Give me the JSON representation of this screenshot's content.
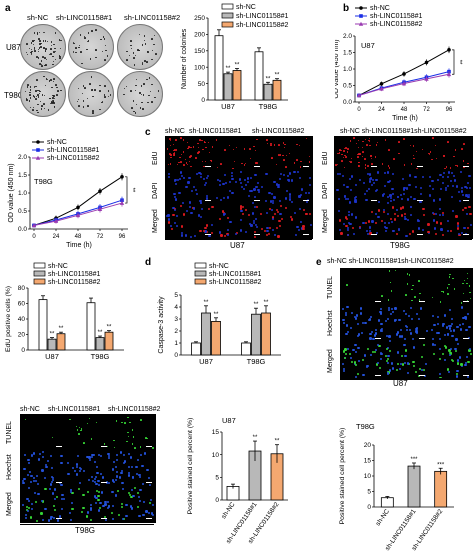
{
  "panels": {
    "a": "a",
    "b": "b",
    "c": "c",
    "d": "d",
    "e": "e"
  },
  "groups": [
    "sh-NC",
    "sh-LINC01158#1",
    "sh-LINC01158#2"
  ],
  "colors": {
    "nc": "#ffffff",
    "kd1": "#b8b8b8",
    "kd2": "#f4a870",
    "line_nc": "#000000",
    "line_kd1": "#1a2ee6",
    "line_kd2": "#9a3ab0",
    "edu": "#d8181e",
    "dapi": "#1c33c8",
    "tunel": "#35d435",
    "hoechst": "#2350d8"
  },
  "colony_images": {
    "labels": [
      "sh-NC",
      "sh-LINC01158#1",
      "sh-LINC01158#2"
    ],
    "rows": [
      "U87",
      "T98G"
    ]
  },
  "micro": {
    "edu": {
      "header_u87": [
        "sh-NC",
        "sh-LINC01158#1",
        "sh-LINC01158#2"
      ],
      "header_t98g": "sh-NC sh-LINC01158#1sh-LINC01158#2",
      "rows": [
        "EdU",
        "DAPI",
        "Merged"
      ],
      "u87": "U87",
      "t98g": "T98G"
    },
    "tunel_u87": {
      "header": "sh-NC sh-LINC01158#1sh-LINC01158#2",
      "rows": [
        "TUNEL",
        "Hoechst",
        "Merged"
      ],
      "cell": "U87"
    },
    "tunel_t98g": {
      "header": [
        "sh-NC",
        "sh-LINC01158#1",
        "sh-LINC01158#2"
      ],
      "rows": [
        "TUNEL",
        "Hoechst",
        "Merged"
      ],
      "cell": "T98G"
    }
  },
  "chart_data": [
    {
      "id": "colonies",
      "type": "bar",
      "categories": [
        "U87",
        "T98G"
      ],
      "series": [
        {
          "name": "sh-NC",
          "values": [
            196,
            147
          ],
          "err": [
            18,
            12
          ]
        },
        {
          "name": "sh-LINC01158#1",
          "values": [
            80,
            48
          ],
          "err": [
            5,
            6
          ]
        },
        {
          "name": "sh-LINC01158#2",
          "values": [
            90,
            60
          ],
          "err": [
            6,
            5
          ]
        }
      ],
      "ylabel": "Number of colonies",
      "ylim": [
        0,
        250
      ],
      "yticks": [
        0,
        50,
        100,
        150,
        200,
        250
      ],
      "sig": "**",
      "legend": [
        "sh-NC",
        "sh-LINC01158#1",
        "sh-LINC01158#2"
      ]
    },
    {
      "id": "cck8_u87",
      "type": "line",
      "x": [
        0,
        24,
        48,
        72,
        96
      ],
      "series": [
        {
          "name": "sh-NC",
          "values": [
            0.2,
            0.55,
            0.85,
            1.2,
            1.58
          ]
        },
        {
          "name": "sh-LINC01158#1",
          "values": [
            0.2,
            0.42,
            0.6,
            0.75,
            0.92
          ]
        },
        {
          "name": "sh-LINC01158#2",
          "values": [
            0.2,
            0.4,
            0.56,
            0.7,
            0.84
          ]
        }
      ],
      "title": "U87",
      "xlabel": "Time (h)",
      "ylabel": "OD value (450 nm)",
      "ylim": [
        0,
        2.0
      ],
      "yticks": [
        "0.0",
        "0.5",
        "1.0",
        "1.5",
        "2.0"
      ],
      "xticks": [
        "0",
        "24",
        "48",
        "72",
        "96"
      ],
      "sig": "**",
      "legend": [
        "sh-NC",
        "sh-LINC01158#1",
        "sh-LINC01158#2"
      ]
    },
    {
      "id": "cck8_t98g",
      "type": "line",
      "x": [
        0,
        24,
        48,
        72,
        96
      ],
      "series": [
        {
          "name": "sh-NC",
          "values": [
            0.1,
            0.3,
            0.6,
            1.05,
            1.45
          ]
        },
        {
          "name": "sh-LINC01158#1",
          "values": [
            0.1,
            0.25,
            0.42,
            0.6,
            0.8
          ]
        },
        {
          "name": "sh-LINC01158#2",
          "values": [
            0.1,
            0.22,
            0.38,
            0.55,
            0.72
          ]
        }
      ],
      "title": "T98G",
      "xlabel": "Time (h)",
      "ylabel": "OD value (450 nm)",
      "ylim": [
        0,
        2.0
      ],
      "yticks": [
        "0.0",
        "0.5",
        "1.0",
        "1.5",
        "2.0"
      ],
      "xticks": [
        "0",
        "24",
        "48",
        "72",
        "96"
      ],
      "sig": "**",
      "legend": [
        "sh-NC",
        "sh-LINC01158#1",
        "sh-LINC01158#2"
      ]
    },
    {
      "id": "edu",
      "type": "bar",
      "categories": [
        "U87",
        "T98G"
      ],
      "series": [
        {
          "name": "sh-NC",
          "values": [
            65,
            61
          ],
          "err": [
            5,
            6
          ]
        },
        {
          "name": "sh-LINC01158#1",
          "values": [
            14,
            16
          ],
          "err": [
            2,
            2
          ]
        },
        {
          "name": "sh-LINC01158#2",
          "values": [
            21,
            23
          ],
          "err": [
            2,
            2
          ]
        }
      ],
      "ylabel": "EdU positive cells (%)",
      "ylim": [
        0,
        80
      ],
      "yticks": [
        0,
        20,
        40,
        60,
        80
      ],
      "sig": "**",
      "legend": [
        "sh-NC",
        "sh-LINC01158#1",
        "sh-LINC01158#2"
      ]
    },
    {
      "id": "caspase",
      "type": "bar",
      "categories": [
        "U87",
        "T98G"
      ],
      "series": [
        {
          "name": "sh-NC",
          "values": [
            1.0,
            1.0
          ],
          "err": [
            0.1,
            0.1
          ]
        },
        {
          "name": "sh-LINC01158#1",
          "values": [
            3.5,
            3.4
          ],
          "err": [
            0.6,
            0.5
          ]
        },
        {
          "name": "sh-LINC01158#2",
          "values": [
            2.8,
            3.5
          ],
          "err": [
            0.3,
            0.6
          ]
        }
      ],
      "ylabel": "Caspase-3 activity",
      "ylim": [
        0,
        5
      ],
      "yticks": [
        0,
        1,
        2,
        3,
        4,
        5
      ],
      "sig": "**",
      "legend": [
        "sh-NC",
        "sh-LINC01158#1",
        "sh-LINC01158#2"
      ]
    },
    {
      "id": "tunel_u87_bar",
      "type": "bar",
      "categories": [
        "sh-NC",
        "sh-LINC01158#1",
        "sh-LINC01158#2"
      ],
      "values": [
        3,
        10.8,
        10.2
      ],
      "err": [
        0.5,
        2.2,
        2.0
      ],
      "title": "U87",
      "ylabel": "Positive stained cell percent (%)",
      "ylim": [
        0,
        15
      ],
      "yticks": [
        0,
        5,
        10,
        15
      ],
      "sig": [
        "",
        "**",
        "**"
      ]
    },
    {
      "id": "tunel_t98g_bar",
      "type": "bar",
      "categories": [
        "sh-NC",
        "sh-LINC01158#1",
        "sh-LINC01158#2"
      ],
      "values": [
        3,
        13.2,
        11.5
      ],
      "err": [
        0.4,
        1.0,
        1.0
      ],
      "title": "T98G",
      "ylabel": "Positive stained cell percent (%)",
      "ylim": [
        0,
        20
      ],
      "yticks": [
        0,
        5,
        10,
        15,
        20
      ],
      "sig": [
        "",
        "***",
        "***"
      ]
    }
  ]
}
